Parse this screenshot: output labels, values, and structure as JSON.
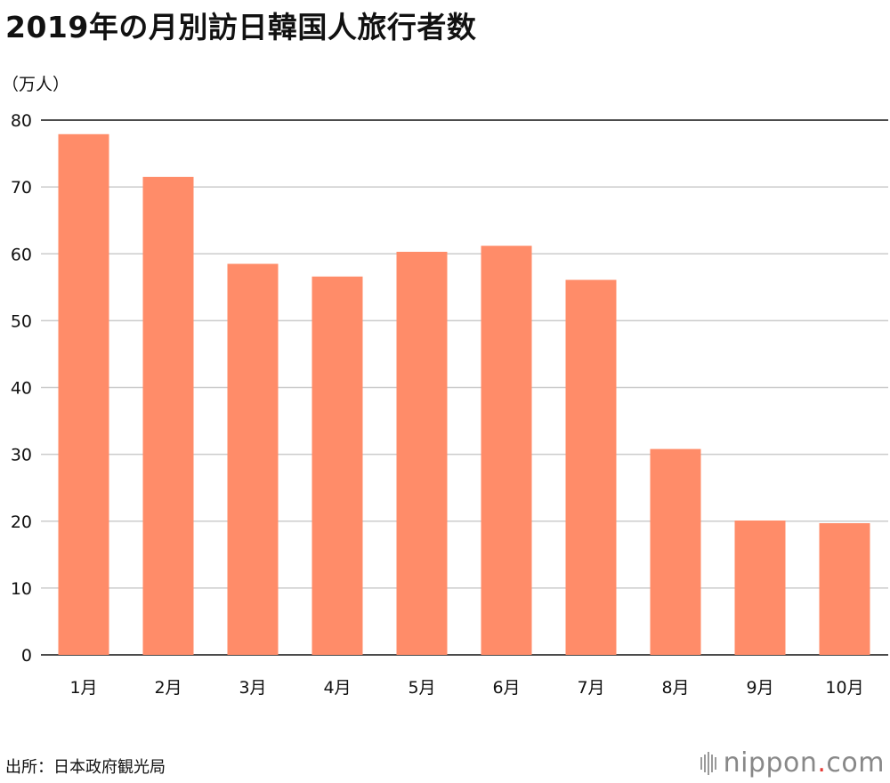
{
  "chart_data": {
    "type": "bar",
    "title": "2019年の月別訪日韓国人旅行者数",
    "unit_label": "（万人）",
    "categories": [
      "1月",
      "2月",
      "3月",
      "4月",
      "5月",
      "6月",
      "7月",
      "8月",
      "9月",
      "10月"
    ],
    "values": [
      77.9,
      71.5,
      58.5,
      56.6,
      60.3,
      61.2,
      56.1,
      30.8,
      20.1,
      19.7
    ],
    "ylim": [
      0,
      80
    ],
    "yticks": [
      0,
      10,
      20,
      30,
      40,
      50,
      60,
      70,
      80
    ],
    "grid": true,
    "bar_color": "#ff8c69",
    "gridline_color": "#cccccc"
  },
  "footer": {
    "source": "出所：日本政府観光局",
    "brand_main": "nippon",
    "brand_dot": ".",
    "brand_tld": "com",
    "brand_dot_color": "#e53935"
  }
}
